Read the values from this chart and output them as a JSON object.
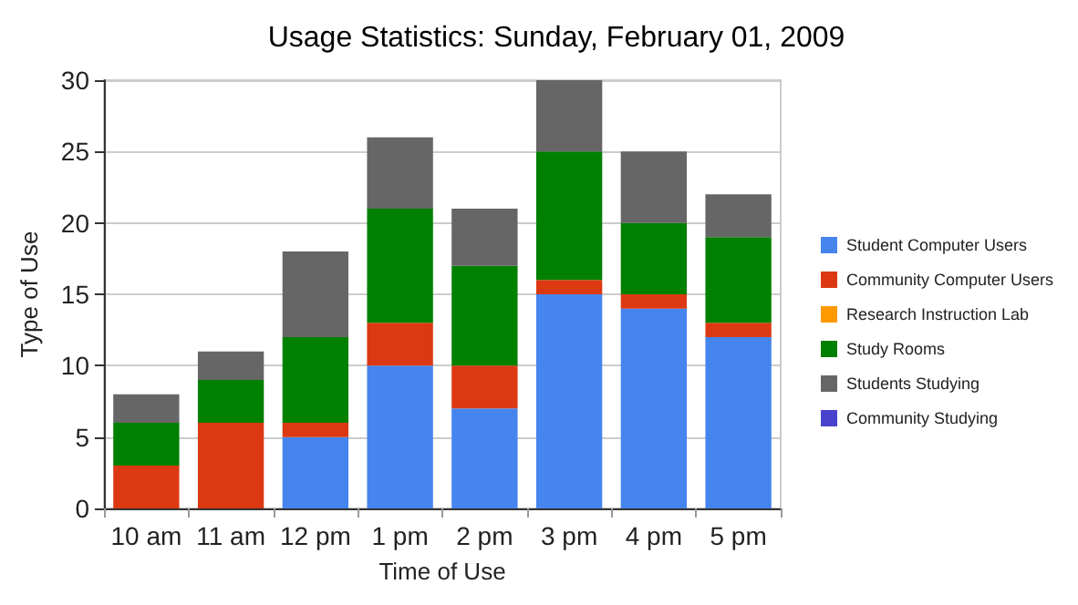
{
  "chart_data": {
    "type": "bar",
    "title": "Usage Statistics: Sunday, February 01, 2009",
    "xlabel": "Time of Use",
    "ylabel": "Type of Use",
    "categories": [
      "10 am",
      "11 am",
      "12 pm",
      "1 pm",
      "2 pm",
      "3 pm",
      "4 pm",
      "5 pm"
    ],
    "series": [
      {
        "name": "Student Computer Users",
        "color": "#4684ee",
        "values": [
          0,
          0,
          5,
          10,
          7,
          15,
          14,
          12
        ]
      },
      {
        "name": "Community Computer Users",
        "color": "#dc3912",
        "values": [
          3,
          6,
          1,
          3,
          3,
          1,
          1,
          1
        ]
      },
      {
        "name": "Research Instruction Lab",
        "color": "#ff9900",
        "values": [
          0,
          0,
          0,
          0,
          0,
          0,
          0,
          0
        ]
      },
      {
        "name": "Study Rooms",
        "color": "#008000",
        "values": [
          3,
          3,
          6,
          8,
          7,
          9,
          5,
          6
        ]
      },
      {
        "name": "Students Studying",
        "color": "#666666",
        "values": [
          2,
          2,
          6,
          5,
          4,
          5,
          5,
          3
        ]
      },
      {
        "name": "Community Studying",
        "color": "#4942cc",
        "values": [
          0,
          0,
          0,
          0,
          0,
          0,
          0,
          0
        ]
      }
    ],
    "stacked": true,
    "ylim": [
      0,
      30
    ],
    "yticks": [
      0,
      5,
      10,
      15,
      20,
      25,
      30
    ],
    "grid": "y",
    "legend": "right"
  }
}
